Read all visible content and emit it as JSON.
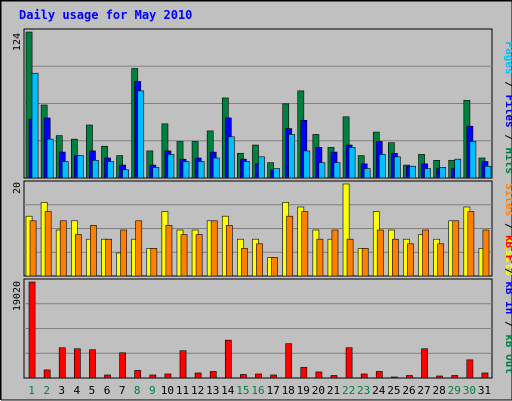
{
  "chart_data": {
    "type": "bar",
    "title": "Daily usage for May 2010",
    "categories": [
      "1",
      "2",
      "3",
      "4",
      "5",
      "6",
      "7",
      "8",
      "9",
      "10",
      "11",
      "12",
      "13",
      "14",
      "15",
      "16",
      "17",
      "18",
      "19",
      "20",
      "21",
      "22",
      "23",
      "24",
      "25",
      "26",
      "27",
      "28",
      "29",
      "30",
      "31"
    ],
    "weekend_days": [
      "1",
      "2",
      "8",
      "9",
      "15",
      "16",
      "22",
      "23",
      "29",
      "30"
    ],
    "panels": [
      {
        "id": "hits",
        "y_max_label": "124",
        "ylim": [
          0,
          124
        ],
        "y_labels": [
          "Pages",
          "/",
          "Files",
          "/",
          "Hits"
        ],
        "series": [
          {
            "name": "Hits",
            "color": "#008040",
            "values": [
              124,
              62,
              36,
              33,
              45,
              27,
              19,
              93,
              23,
              46,
              31,
              31,
              40,
              68,
              21,
              28,
              13,
              63,
              74,
              37,
              26,
              52,
              19,
              39,
              30,
              11,
              20,
              15,
              15,
              66,
              17
            ]
          },
          {
            "name": "Files",
            "color": "#0000FF",
            "values": [
              50,
              51,
              22,
              19,
              23,
              17,
              11,
              82,
              11,
              23,
              16,
              17,
              22,
              51,
              16,
              12,
              7,
              42,
              49,
              26,
              22,
              28,
              12,
              31,
              21,
              10,
              12,
              8,
              8,
              44,
              14
            ]
          },
          {
            "name": "Pages",
            "color": "#00BFFF",
            "values": [
              89,
              33,
              14,
              19,
              15,
              14,
              7,
              74,
              9,
              20,
              14,
              14,
              17,
              35,
              14,
              18,
              8,
              37,
              23,
              13,
              13,
              26,
              8,
              20,
              18,
              10,
              8,
              9,
              16,
              31,
              10
            ]
          }
        ]
      },
      {
        "id": "sites",
        "y_max_label": "20",
        "ylim": [
          0,
          20
        ],
        "y_labels": [
          "Sites",
          "/",
          "Visits"
        ],
        "series": [
          {
            "name": "Visits",
            "color": "#FFFF00",
            "values": [
              13,
              16,
              10,
              12,
              8,
              8,
              5,
              8,
              6,
              14,
              10,
              10,
              12,
              13,
              8,
              8,
              4,
              16,
              15,
              10,
              8,
              20,
              6,
              14,
              10,
              8,
              9,
              8,
              12,
              15,
              6
            ]
          },
          {
            "name": "Sites",
            "color": "#FF8000",
            "values": [
              12,
              14,
              12,
              9,
              11,
              8,
              10,
              12,
              6,
              11,
              9,
              9,
              12,
              11,
              6,
              7,
              4,
              13,
              14,
              8,
              10,
              8,
              6,
              10,
              8,
              7,
              10,
              7,
              12,
              14,
              10
            ]
          }
        ]
      },
      {
        "id": "kbytes",
        "y_max_label": "19020",
        "ylim": [
          0,
          19020
        ],
        "y_labels": [
          "kB F",
          "/",
          "kB In",
          "/",
          "kB Out"
        ],
        "series": [
          {
            "name": "kB F",
            "color": "#FF0000",
            "values": [
              19020,
              1600,
              6000,
              5800,
              5600,
              600,
              5000,
              1500,
              600,
              800,
              5400,
              1000,
              1300,
              7500,
              700,
              800,
              600,
              6800,
              2100,
              1200,
              500,
              6000,
              800,
              1300,
              200,
              500,
              5800,
              400,
              500,
              3600,
              1000
            ]
          }
        ]
      }
    ]
  },
  "colors": {
    "frame_background": "#C0C0C0",
    "title": "#0000FF",
    "hits": "#008040",
    "files": "#0000FF",
    "pages": "#00BFFF",
    "visits": "#FFFF00",
    "sites": "#FF8000",
    "kbin": "#0000FF",
    "kbout": "#008040",
    "kbf": "#FF0000",
    "weekday_label": "#000000",
    "weekend_label": "#008040"
  }
}
